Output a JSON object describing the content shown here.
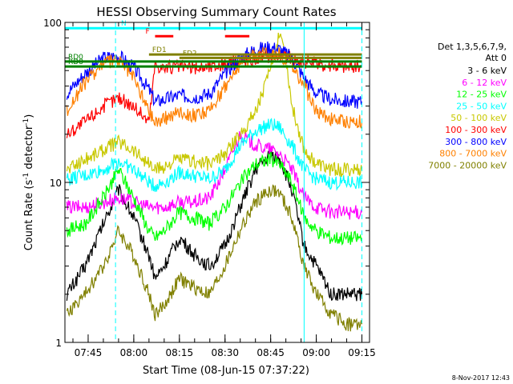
{
  "chart_data": {
    "type": "line",
    "title": "HESSI Observing Summary Count Rates",
    "xlabel": "Start Time (08-Jun-15 07:37:22)",
    "ylabel": "Count Rate (s",
    "ylabel_sup": "-1",
    "ylabel_tail": " detector",
    "ylabel_tail_sup": "-1",
    "ylabel_close": ")",
    "y_scale": "log",
    "ylim": [
      1,
      100
    ],
    "y_ticks": [
      {
        "value": 1,
        "label": "1"
      },
      {
        "value": 10,
        "label": "10"
      },
      {
        "value": 100,
        "label": "100"
      }
    ],
    "xlim": [
      "07:37:22",
      "09:17:30"
    ],
    "x_ticks": [
      "07:45",
      "08:00",
      "08:15",
      "08:30",
      "08:45",
      "09:00",
      "09:15"
    ],
    "legend_title_1": "Det 1,3,5,6,7,9,",
    "legend_title_2": "Att 0",
    "legend_position": "right",
    "series": [
      {
        "name": "3 - 6 keV",
        "color": "#000000",
        "x": [
          "07:38",
          "07:44",
          "07:50",
          "07:55",
          "08:00",
          "08:05",
          "08:07",
          "08:10",
          "08:15",
          "08:20",
          "08:25",
          "08:30",
          "08:35",
          "08:40",
          "08:45",
          "08:48",
          "08:52",
          "08:56",
          "09:00",
          "09:05",
          "09:10",
          "09:15"
        ],
        "values": [
          2.0,
          3.0,
          5.5,
          9.0,
          6.0,
          3.5,
          2.5,
          3.0,
          4.5,
          3.5,
          3.0,
          4.0,
          7.0,
          12.0,
          15.0,
          14.0,
          9.0,
          4.0,
          3.0,
          2.0,
          2.0,
          2.0
        ]
      },
      {
        "name": "6 - 12 keV",
        "color": "#ff00ff",
        "x": [
          "07:38",
          "07:44",
          "07:50",
          "07:55",
          "08:00",
          "08:05",
          "08:07",
          "08:10",
          "08:15",
          "08:20",
          "08:25",
          "08:30",
          "08:35",
          "08:40",
          "08:45",
          "08:48",
          "08:52",
          "08:56",
          "09:00",
          "09:05",
          "09:10",
          "09:15"
        ],
        "values": [
          7.0,
          7.0,
          7.5,
          8.0,
          7.5,
          7.0,
          7.0,
          7.0,
          7.5,
          7.5,
          8.0,
          12.0,
          20.0,
          17.0,
          16.0,
          15.0,
          12.0,
          8.0,
          7.0,
          6.5,
          6.5,
          6.5
        ]
      },
      {
        "name": "12 - 25 keV",
        "color": "#00ff00",
        "x": [
          "07:38",
          "07:44",
          "07:50",
          "07:55",
          "08:00",
          "08:05",
          "08:07",
          "08:10",
          "08:15",
          "08:20",
          "08:25",
          "08:30",
          "08:35",
          "08:40",
          "08:45",
          "08:48",
          "08:52",
          "08:56",
          "09:00",
          "09:05",
          "09:10",
          "09:15"
        ],
        "values": [
          5.0,
          5.5,
          8.0,
          12.0,
          8.0,
          5.0,
          4.5,
          5.0,
          6.5,
          6.0,
          5.5,
          7.0,
          10.0,
          13.0,
          14.0,
          13.0,
          10.0,
          6.0,
          5.0,
          4.5,
          4.5,
          4.5
        ]
      },
      {
        "name": "25 - 50 keV",
        "color": "#00ffff",
        "x": [
          "07:38",
          "07:44",
          "07:50",
          "07:55",
          "08:00",
          "08:05",
          "08:07",
          "08:10",
          "08:15",
          "08:20",
          "08:25",
          "08:30",
          "08:35",
          "08:40",
          "08:45",
          "08:48",
          "08:52",
          "08:56",
          "09:00",
          "09:05",
          "09:10",
          "09:15"
        ],
        "values": [
          10.5,
          11.0,
          12.0,
          13.5,
          12.0,
          10.0,
          9.5,
          10.0,
          11.5,
          11.0,
          10.5,
          12.0,
          17.0,
          21.0,
          23.0,
          22.0,
          17.0,
          12.0,
          10.5,
          10.0,
          10.0,
          10.0
        ]
      },
      {
        "name": "50 - 100 keV",
        "color": "#c8c800",
        "x": [
          "07:38",
          "07:44",
          "07:50",
          "07:55",
          "08:00",
          "08:05",
          "08:07",
          "08:10",
          "08:15",
          "08:20",
          "08:25",
          "08:30",
          "08:35",
          "08:40",
          "08:45",
          "08:48",
          "08:50",
          "08:52",
          "08:56",
          "09:00",
          "09:05",
          "09:10",
          "09:15"
        ],
        "values": [
          12.0,
          14.0,
          16.0,
          18.0,
          16.0,
          13.0,
          12.0,
          12.5,
          14.0,
          13.5,
          13.0,
          15.0,
          20.0,
          28.0,
          50.0,
          90.0,
          60.0,
          30.0,
          16.0,
          13.0,
          12.0,
          12.0,
          12.0
        ]
      },
      {
        "name": "100 - 300 keV",
        "color": "#ff0000",
        "x": [
          "07:38",
          "07:44",
          "07:50",
          "07:55",
          "08:00",
          "08:05",
          "08:07",
          "08:10",
          "08:15",
          "08:20",
          "08:25",
          "08:30",
          "08:35",
          "08:40",
          "08:45",
          "08:48",
          "08:52",
          "08:56",
          "09:00",
          "09:05",
          "09:10",
          "09:15"
        ],
        "values": [
          20.0,
          24.0,
          30.0,
          34.0,
          30.0,
          24.0,
          55.0,
          52.0,
          53.0,
          52.0,
          53.0,
          55.0,
          57.0,
          60.0,
          62.0,
          62.0,
          60.0,
          57.0,
          55.0,
          54.0,
          53.0,
          53.0
        ]
      },
      {
        "name": "300 - 800 keV",
        "color": "#0000ff",
        "x": [
          "07:38",
          "07:44",
          "07:50",
          "07:55",
          "08:00",
          "08:05",
          "08:07",
          "08:10",
          "08:15",
          "08:20",
          "08:25",
          "08:30",
          "08:35",
          "08:40",
          "08:45",
          "08:48",
          "08:52",
          "08:56",
          "09:00",
          "09:05",
          "09:10",
          "09:15"
        ],
        "values": [
          36.0,
          48.0,
          60.0,
          62.0,
          52.0,
          38.0,
          32.0,
          33.0,
          35.0,
          34.0,
          36.0,
          48.0,
          60.0,
          68.0,
          70.0,
          68.0,
          60.0,
          45.0,
          36.0,
          33.0,
          32.0,
          32.0
        ]
      },
      {
        "name": "800 - 7000 keV",
        "color": "#ff8000",
        "x": [
          "07:38",
          "07:44",
          "07:50",
          "07:55",
          "08:00",
          "08:05",
          "08:07",
          "08:10",
          "08:15",
          "08:20",
          "08:25",
          "08:30",
          "08:35",
          "08:40",
          "08:45",
          "08:48",
          "08:52",
          "08:56",
          "09:00",
          "09:05",
          "09:10",
          "09:15"
        ],
        "values": [
          28.0,
          42.0,
          56.0,
          58.0,
          45.0,
          28.0,
          24.0,
          25.0,
          28.0,
          26.0,
          28.0,
          40.0,
          55.0,
          63.0,
          65.0,
          63.0,
          55.0,
          40.0,
          28.0,
          25.0,
          24.0,
          24.0
        ]
      },
      {
        "name": "7000 - 20000 keV",
        "color": "#808000",
        "x": [
          "07:38",
          "07:44",
          "07:50",
          "07:55",
          "08:00",
          "08:05",
          "08:07",
          "08:10",
          "08:15",
          "08:20",
          "08:25",
          "08:30",
          "08:35",
          "08:40",
          "08:45",
          "08:48",
          "08:52",
          "08:56",
          "09:00",
          "09:05",
          "09:10",
          "09:15"
        ],
        "values": [
          1.5,
          2.0,
          3.0,
          5.0,
          3.5,
          2.0,
          1.5,
          1.7,
          2.5,
          2.2,
          2.0,
          3.0,
          5.0,
          7.5,
          9.0,
          8.5,
          6.0,
          3.0,
          2.0,
          1.5,
          1.3,
          1.3
        ]
      }
    ],
    "flags": [
      {
        "label": "N",
        "color": "#00ffff",
        "start": "07:37",
        "end": "09:15",
        "level": 92
      },
      {
        "label": "F",
        "color": "#ff0000",
        "start": "08:07",
        "end": "08:13",
        "level": 82
      },
      {
        "label": "",
        "color": "#ff0000",
        "start": "08:30",
        "end": "08:38",
        "level": 82
      },
      {
        "label": "FD1",
        "color": "#808000",
        "start": "08:05",
        "end": "09:15",
        "level": 63
      },
      {
        "label": "FD2",
        "color": "#808000",
        "start": "08:15",
        "end": "09:15",
        "level": 60
      },
      {
        "label": "RD0",
        "color": "#008000",
        "start": "07:37",
        "end": "09:15",
        "level": 57
      },
      {
        "label": "RD8",
        "color": "#008000",
        "start": "07:37",
        "end": "09:15",
        "level": 53
      }
    ],
    "vertical_markers": [
      {
        "time": "07:37:22",
        "color": "#00ffff",
        "style": "solid"
      },
      {
        "time": "07:54",
        "color": "#00ffff",
        "style": "dashed"
      },
      {
        "time": "08:56",
        "color": "#00ffff",
        "style": "solid"
      },
      {
        "time": "09:15",
        "color": "#00ffff",
        "style": "dashed"
      }
    ],
    "grid": false,
    "timestamp": "8-Nov-2017 12:43"
  }
}
